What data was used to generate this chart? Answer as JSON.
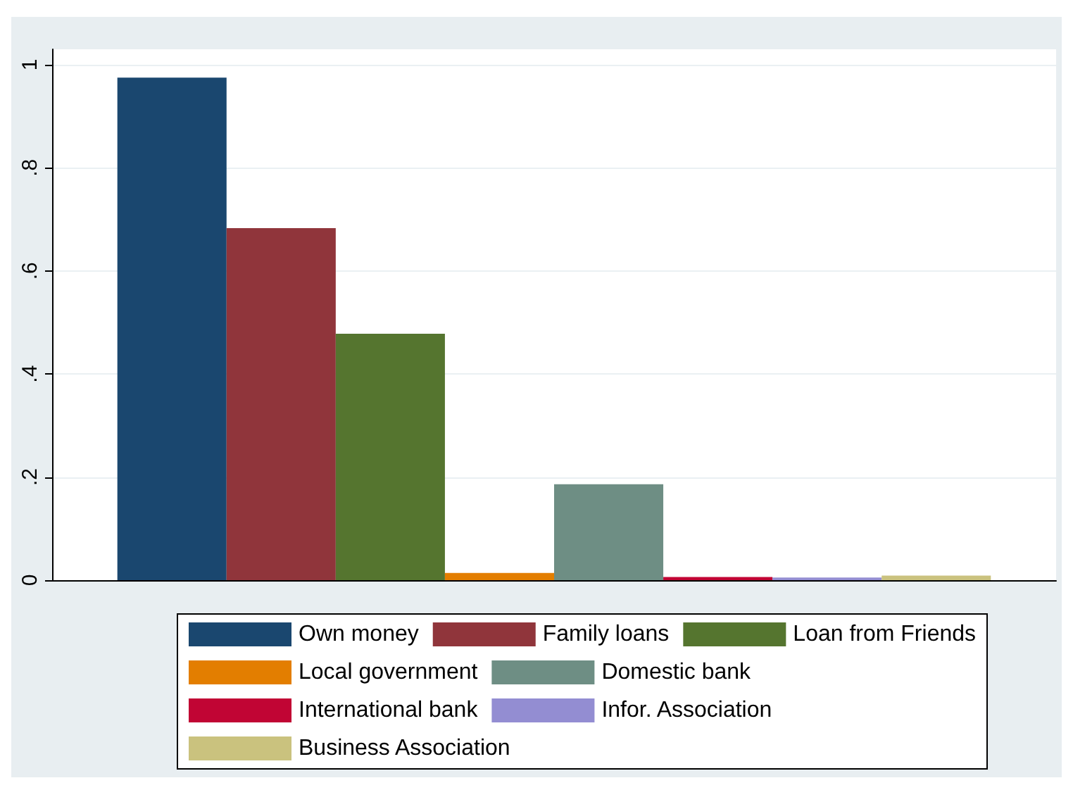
{
  "chart_data": {
    "type": "bar",
    "categories": [
      null
    ],
    "series": [
      {
        "name": "Own money",
        "color": "#1a476f",
        "values": [
          0.975
        ]
      },
      {
        "name": "Family loans",
        "color": "#90353b",
        "values": [
          0.683
        ]
      },
      {
        "name": "Loan from Friends",
        "color": "#55752f",
        "values": [
          0.478
        ]
      },
      {
        "name": "Local government",
        "color": "#e37e00",
        "values": [
          0.014
        ]
      },
      {
        "name": "Domestic bank",
        "color": "#6e8e84",
        "values": [
          0.186
        ]
      },
      {
        "name": "International bank",
        "color": "#c10534",
        "values": [
          0.006
        ]
      },
      {
        "name": "Infor. Association",
        "color": "#938dd2",
        "values": [
          0.005
        ]
      },
      {
        "name": "Business Association",
        "color": "#cac27e",
        "values": [
          0.009
        ]
      }
    ],
    "ylim": [
      0,
      1.03
    ],
    "yticks": [
      0,
      {
        "value": 0.2,
        "label": ".2"
      },
      {
        "value": 0.4,
        "label": ".4"
      },
      {
        "value": 0.6,
        "label": ".6"
      },
      {
        "value": 0.8,
        "label": ".8"
      },
      1
    ],
    "grid": "y",
    "legend": "bottom"
  }
}
